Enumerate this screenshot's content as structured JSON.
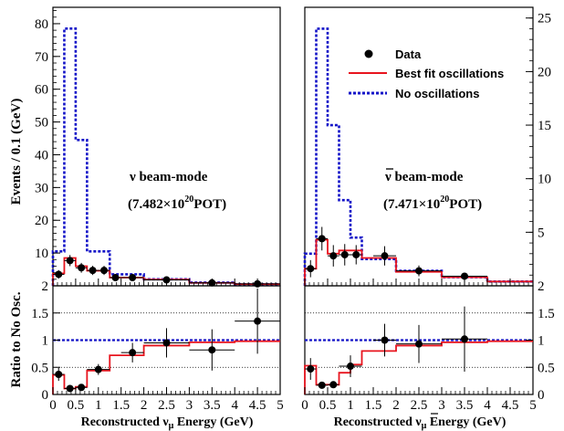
{
  "colors": {
    "data": "#000000",
    "best_fit": "#e8141e",
    "no_osc": "#1414c8",
    "ratio_ref": "#1414c8"
  },
  "y_axis_label_top": "Events / 0.1 (GeV)",
  "y_axis_label_bottom": "Ratio to No Osc.",
  "legend": {
    "placement": "top-right of right panel",
    "data": "Data",
    "best_fit": "Best fit oscillations",
    "no_osc": "No oscillations"
  },
  "chart_data": [
    {
      "type": "line",
      "panel": "left-top",
      "annotation_line1": "ν beam-mode",
      "annotation_line2_pre": "(7.482×10",
      "annotation_line2_exp": "20",
      "annotation_line2_post": "POT)",
      "ylim": [
        0,
        85
      ],
      "yticks": [
        "10",
        "20",
        "30",
        "40",
        "50",
        "60",
        "70",
        "80"
      ],
      "ytick_values": [
        10,
        20,
        30,
        40,
        50,
        60,
        70,
        80
      ],
      "xlim": [
        0,
        5
      ],
      "bin_edges": [
        0,
        0.25,
        0.5,
        0.75,
        1.0,
        1.25,
        1.5,
        2.0,
        3.0,
        4.0,
        5.0
      ],
      "series": [
        {
          "name": "No oscillations",
          "style": "dashed",
          "values": [
            10.5,
            78.5,
            44.5,
            10.5,
            10.5,
            3.5,
            3.5,
            2.0,
            1.0,
            0.5
          ]
        },
        {
          "name": "Best fit oscillations",
          "style": "solid",
          "values": [
            3.8,
            8.5,
            6.0,
            4.6,
            4.6,
            2.5,
            2.5,
            1.9,
            0.9,
            0.5
          ]
        }
      ],
      "data_points": {
        "x": [
          0.125,
          0.375,
          0.625,
          0.875,
          1.125,
          1.375,
          1.75,
          2.5,
          3.5,
          4.5
        ],
        "y": [
          3.5,
          7.7,
          5.5,
          4.7,
          4.7,
          2.5,
          2.5,
          1.8,
          0.9,
          0.6
        ],
        "yerr": [
          1.3,
          1.7,
          1.5,
          1.4,
          1.4,
          1.1,
          0.9,
          0.7,
          0.5,
          0.4
        ],
        "xerr": [
          0.125,
          0.125,
          0.125,
          0.125,
          0.125,
          0.125,
          0.25,
          0.5,
          0.5,
          0.5
        ]
      }
    },
    {
      "type": "line",
      "panel": "left-bottom",
      "ylim": [
        0,
        2
      ],
      "yticks": [
        "0",
        "0.5",
        "1",
        "1.5",
        "2"
      ],
      "ytick_values": [
        0,
        0.5,
        1,
        1.5,
        2
      ],
      "xticks": [
        "0",
        "0.5",
        "1",
        "1.5",
        "2",
        "2.5",
        "3",
        "3.5",
        "4",
        "4.5",
        "5"
      ],
      "xtick_values": [
        0,
        0.5,
        1,
        1.5,
        2,
        2.5,
        3,
        3.5,
        4,
        4.5,
        5
      ],
      "xlabel_pre": "Reconstructed  ν",
      "xlabel_sub": "μ",
      "xlabel_post": " Energy (GeV)",
      "reference_line": 1,
      "gridlines": [
        0.5,
        1.5
      ],
      "bin_edges": [
        0,
        0.25,
        0.5,
        0.75,
        1.0,
        1.25,
        1.5,
        2.0,
        3.0,
        4.0,
        5.0
      ],
      "series": [
        {
          "name": "Best fit oscillations",
          "style": "solid",
          "values": [
            0.36,
            0.11,
            0.14,
            0.44,
            0.44,
            0.72,
            0.72,
            0.9,
            0.96,
            0.98
          ]
        }
      ],
      "data_points": {
        "x": [
          0.125,
          0.375,
          0.625,
          1.0,
          1.75,
          2.5,
          3.5,
          4.5
        ],
        "y": [
          0.37,
          0.11,
          0.13,
          0.46,
          0.77,
          0.95,
          0.82,
          1.35
        ],
        "yerr": [
          0.12,
          0.05,
          0.05,
          0.1,
          0.18,
          0.27,
          0.38,
          0.6
        ],
        "xerr": [
          0.125,
          0.125,
          0.125,
          0.25,
          0.25,
          0.5,
          0.5,
          0.5
        ]
      }
    },
    {
      "type": "line",
      "panel": "right-top",
      "annotation_line1": "ν beam-mode",
      "annotation_line2_pre": "(7.471×10",
      "annotation_line2_exp": "20",
      "annotation_line2_post": "POT)",
      "ylim": [
        0,
        26
      ],
      "yticks": [
        "5",
        "10",
        "15",
        "20",
        "25"
      ],
      "ytick_values": [
        5,
        10,
        15,
        20,
        25
      ],
      "xlim": [
        0,
        5
      ],
      "bin_edges": [
        0,
        0.25,
        0.5,
        0.75,
        1.0,
        1.25,
        1.5,
        2.0,
        3.0,
        4.0,
        5.0
      ],
      "series": [
        {
          "name": "No oscillations",
          "style": "dashed",
          "values": [
            3.0,
            24.0,
            15.0,
            8.0,
            4.5,
            2.5,
            2.5,
            1.4,
            0.8,
            0.4
          ]
        },
        {
          "name": "Best fit oscillations",
          "style": "solid",
          "values": [
            1.6,
            4.3,
            3.0,
            3.3,
            3.3,
            2.6,
            2.6,
            1.3,
            0.8,
            0.4
          ]
        }
      ],
      "data_points": {
        "x": [
          0.125,
          0.375,
          0.625,
          0.875,
          1.125,
          1.75,
          2.5,
          3.5
        ],
        "y": [
          1.6,
          4.4,
          2.8,
          2.9,
          2.9,
          2.8,
          1.4,
          0.9
        ],
        "yerr": [
          0.8,
          1.1,
          1.0,
          1.0,
          0.9,
          0.9,
          0.5,
          0.3
        ],
        "xerr": [
          0.125,
          0.125,
          0.125,
          0.125,
          0.125,
          0.25,
          0.5,
          0.5
        ]
      }
    },
    {
      "type": "line",
      "panel": "right-bottom",
      "ylim": [
        0,
        2
      ],
      "yticks": [
        "0",
        "0.5",
        "1",
        "1.5",
        "2"
      ],
      "ytick_values": [
        0,
        0.5,
        1,
        1.5,
        2
      ],
      "xticks": [
        "0",
        "0.5",
        "1",
        "1.5",
        "2",
        "2.5",
        "3",
        "3.5",
        "4",
        "4.5",
        "5"
      ],
      "xtick_values": [
        0,
        0.5,
        1,
        1.5,
        2,
        2.5,
        3,
        3.5,
        4,
        4.5,
        5
      ],
      "xlabel_pre": "Reconstructed  ν",
      "xlabel_sub": "μ",
      "xlabel_post": " Energy (GeV)",
      "reference_line": 1,
      "gridlines": [
        0.5,
        1.5
      ],
      "bin_edges": [
        0,
        0.25,
        0.5,
        0.75,
        1.0,
        1.25,
        1.5,
        2.0,
        3.0,
        4.0,
        5.0
      ],
      "series": [
        {
          "name": "Best fit oscillations",
          "style": "solid",
          "values": [
            0.53,
            0.18,
            0.18,
            0.4,
            0.55,
            0.8,
            0.8,
            0.9,
            0.96,
            0.98
          ]
        }
      ],
      "data_points": {
        "x": [
          0.125,
          0.375,
          0.625,
          1.0,
          1.75,
          2.5,
          3.5
        ],
        "y": [
          0.47,
          0.17,
          0.18,
          0.52,
          1.0,
          0.93,
          1.02
        ],
        "yerr": [
          0.2,
          0.05,
          0.05,
          0.2,
          0.3,
          0.35,
          0.6
        ],
        "xerr": [
          0.125,
          0.125,
          0.125,
          0.25,
          0.25,
          0.5,
          0.5
        ]
      }
    }
  ]
}
